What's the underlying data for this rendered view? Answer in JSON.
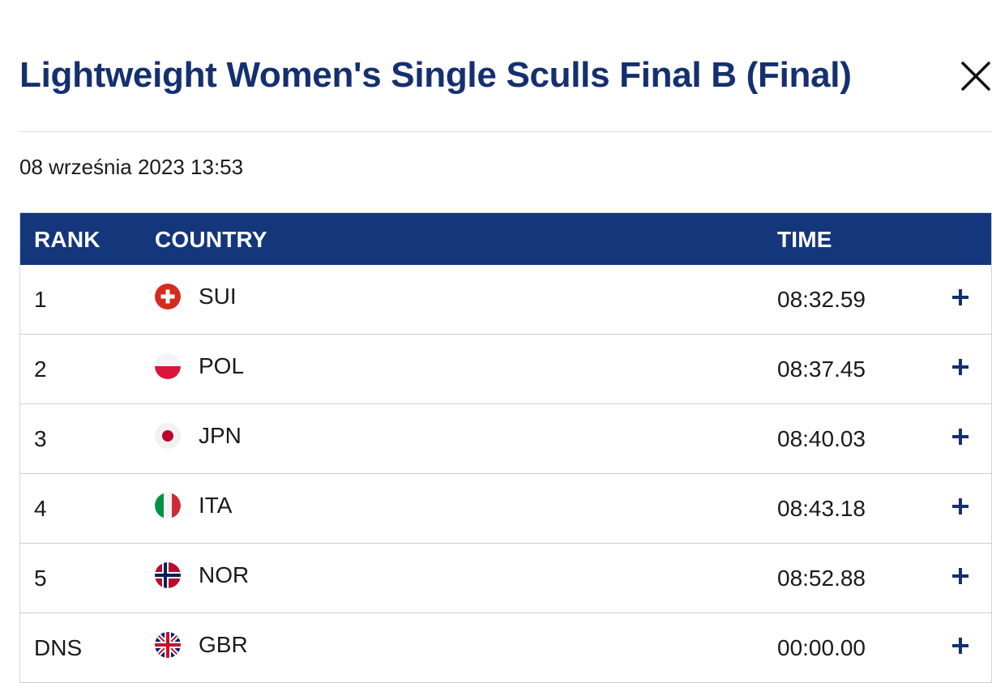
{
  "header": {
    "title": "Lightweight Women's Single Sculls Final B (Final)",
    "close_icon": "close-icon"
  },
  "datetime": "08 września 2023 13:53",
  "table": {
    "columns": [
      "RANK",
      "COUNTRY",
      "TIME"
    ],
    "rows": [
      {
        "rank": "1",
        "country": "SUI",
        "flag": "flag-switzerland",
        "time": "08:32.59"
      },
      {
        "rank": "2",
        "country": "POL",
        "flag": "flag-poland",
        "time": "08:37.45"
      },
      {
        "rank": "3",
        "country": "JPN",
        "flag": "flag-japan",
        "time": "08:40.03"
      },
      {
        "rank": "4",
        "country": "ITA",
        "flag": "flag-italy",
        "time": "08:43.18"
      },
      {
        "rank": "5",
        "country": "NOR",
        "flag": "flag-norway",
        "time": "08:52.88"
      },
      {
        "rank": "DNS",
        "country": "GBR",
        "flag": "flag-great-britain",
        "time": "00:00.00"
      }
    ],
    "expand_icon": "plus-icon"
  },
  "colors": {
    "accent": "#14306e",
    "header_bg": "#14367a",
    "row_border": "#c9ced8"
  }
}
